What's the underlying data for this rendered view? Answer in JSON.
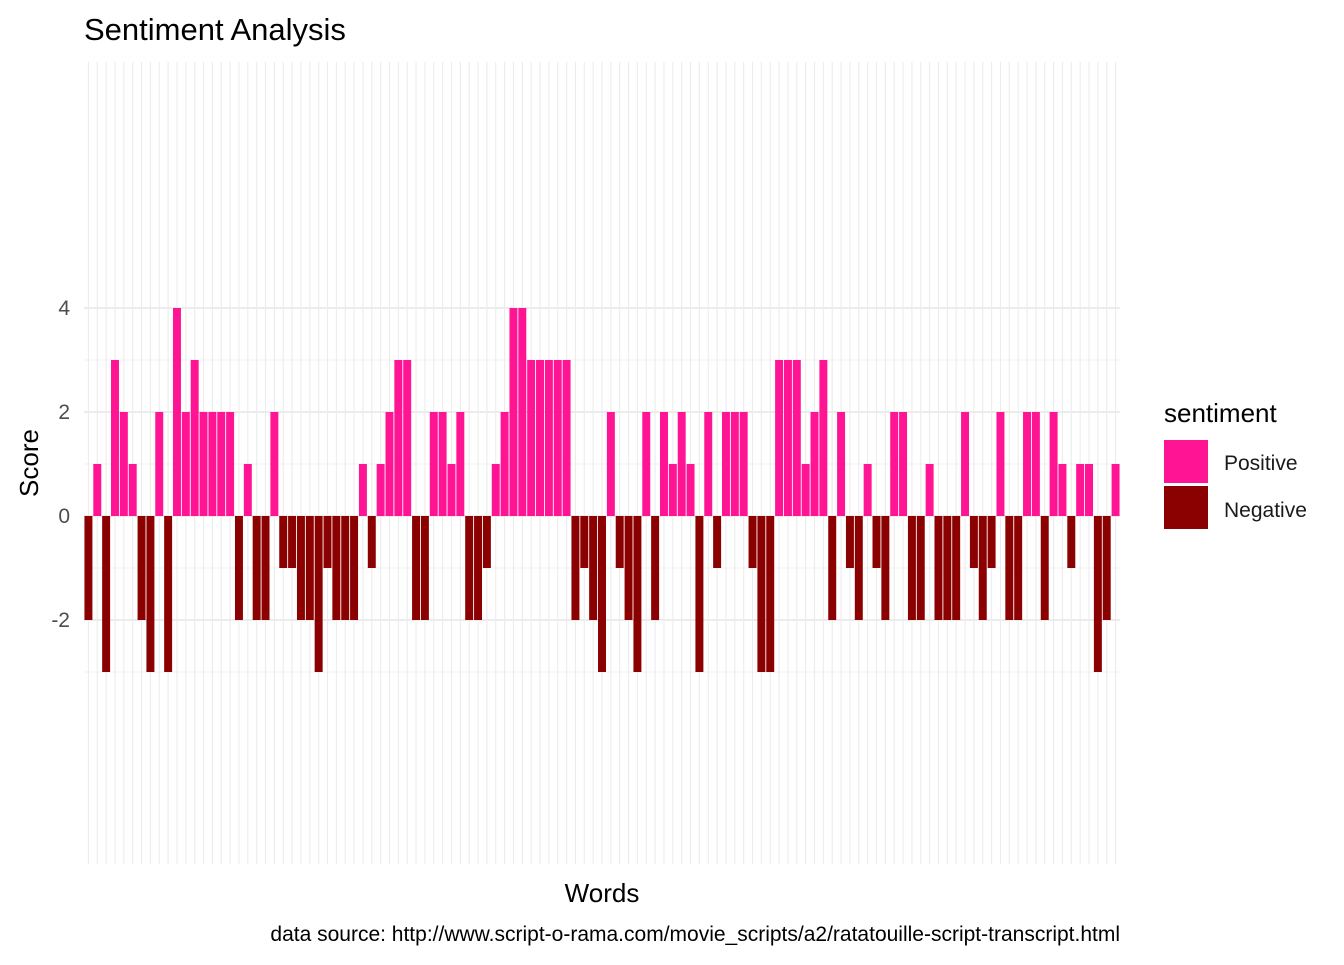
{
  "chart_data": {
    "type": "bar",
    "title": "Sentiment Analysis",
    "xlabel": "Words",
    "ylabel": "Score",
    "caption": "data source: http://www.script-o-rama.com/movie_scripts/a2/ratatouille-script-transcript.html",
    "ylim": [
      -3.35,
      4.7
    ],
    "y_ticks": [
      -2,
      0,
      2,
      4
    ],
    "grid": true,
    "legend": {
      "title": "sentiment",
      "placement": "right",
      "entries": [
        {
          "label": "Positive",
          "color": "#FF1493"
        },
        {
          "label": "Negative",
          "color": "#8B0000"
        }
      ]
    },
    "colors": {
      "positive": "#FF1493",
      "negative": "#8B0000"
    },
    "values": [
      -2,
      1,
      -3,
      3,
      2,
      1,
      -2,
      -3,
      2,
      -3,
      4,
      2,
      3,
      2,
      2,
      2,
      2,
      -2,
      1,
      -2,
      -2,
      2,
      -1,
      -1,
      -2,
      -2,
      -3,
      -1,
      -2,
      -2,
      -2,
      1,
      -1,
      1,
      2,
      3,
      3,
      -2,
      -2,
      2,
      2,
      1,
      2,
      -2,
      -2,
      -1,
      1,
      2,
      4,
      4,
      3,
      3,
      3,
      3,
      3,
      -2,
      -1,
      -2,
      -3,
      2,
      -1,
      -2,
      -3,
      2,
      -2,
      2,
      1,
      2,
      1,
      -3,
      2,
      -1,
      2,
      2,
      2,
      -1,
      -3,
      -3,
      3,
      3,
      3,
      1,
      2,
      3,
      -2,
      2,
      -1,
      -2,
      1,
      -1,
      -2,
      2,
      2,
      -2,
      -2,
      1,
      -2,
      -2,
      -2,
      2,
      -1,
      -2,
      -1,
      2,
      -2,
      -2,
      2,
      2,
      -2,
      2,
      1,
      -1,
      1,
      1,
      -3,
      -2,
      1
    ]
  }
}
